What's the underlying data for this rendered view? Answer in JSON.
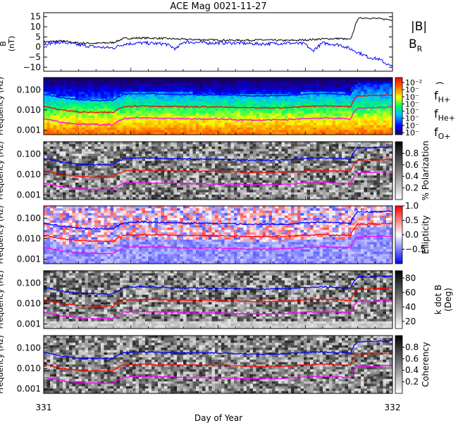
{
  "title": "ACE Mag 0021-11-27",
  "xlabel": "Day of Year",
  "x_ticks": [
    "331",
    "332"
  ],
  "x_range": [
    331,
    332
  ],
  "colors": {
    "black": "#000000",
    "blue": "#0000ff",
    "red": "#ff0000",
    "magenta": "#ff00ff"
  },
  "chart_data": [
    {
      "type": "line",
      "panel": "magnetic field",
      "ylabel": "B\n(nT)",
      "ylim": [
        -12,
        17
      ],
      "yticks": [
        "15",
        "10",
        "5",
        "0",
        "−5",
        "−10"
      ],
      "ytick_values": [
        15,
        10,
        5,
        0,
        -5,
        -10
      ],
      "legend": [
        {
          "label": "|B|",
          "color": "#000000"
        },
        {
          "label": "B",
          "sub": "R",
          "color": "#0000ff"
        }
      ],
      "series": [
        {
          "name": "|B|",
          "color": "#000000",
          "x": [
            331.0,
            331.05,
            331.1,
            331.15,
            331.2,
            331.23,
            331.28,
            331.35,
            331.4,
            331.48,
            331.55,
            331.62,
            331.7,
            331.75,
            331.8,
            331.85,
            331.88,
            331.9,
            331.92,
            331.96,
            332.0
          ],
          "y": [
            2.5,
            3.0,
            2.0,
            1.8,
            2.2,
            4.2,
            4.5,
            4.2,
            3.8,
            3.5,
            3.3,
            3.5,
            3.2,
            3.5,
            4.0,
            4.2,
            3.6,
            14.0,
            14.5,
            14.0,
            13.5
          ]
        },
        {
          "name": "B_R",
          "color": "#0000ff",
          "x": [
            331.0,
            331.05,
            331.1,
            331.15,
            331.2,
            331.23,
            331.28,
            331.35,
            331.38,
            331.4,
            331.48,
            331.55,
            331.62,
            331.7,
            331.75,
            331.77,
            331.8,
            331.85,
            331.88,
            331.9,
            331.93,
            331.96,
            332.0
          ],
          "y": [
            1.5,
            2.5,
            1.0,
            0.0,
            -0.5,
            1.5,
            2.0,
            1.5,
            -1.0,
            2.5,
            2.0,
            2.0,
            1.5,
            2.0,
            1.5,
            -2.0,
            2.0,
            1.0,
            -1.0,
            -2.5,
            -5.0,
            -6.0,
            -10.0
          ]
        }
      ]
    },
    {
      "type": "heatmap",
      "panel": "power spectral density",
      "ylabel": "Frequency (Hz)",
      "ylim": [
        0.0006,
        0.4
      ],
      "yscale": "log",
      "yticks": [
        "0.100",
        "0.010",
        "0.001"
      ],
      "ytick_values": [
        0.1,
        0.01,
        0.001
      ],
      "colorbar": {
        "scale": "log",
        "tick_labels": [
          "10⁻²",
          "10⁻",
          "10⁻",
          "10⁻",
          "10⁻",
          "10⁻",
          "10⁻",
          "10⁻"
        ],
        "label": ")"
      },
      "legend": [
        {
          "label": "f",
          "sub": "H+",
          "color": "#0000ff"
        },
        {
          "label": "f",
          "sub": "He+",
          "color": "#ff0000"
        },
        {
          "label": "f",
          "sub": "O+",
          "color": "#ff00ff"
        }
      ]
    },
    {
      "type": "heatmap",
      "panel": "polarization",
      "ylabel": "Frequency (Hz)",
      "ylim": [
        0.0006,
        0.4
      ],
      "yscale": "log",
      "yticks": [
        "0.100",
        "0.010",
        "0.001"
      ],
      "ytick_values": [
        0.1,
        0.01,
        0.001
      ],
      "colorbar": {
        "range": [
          0,
          1
        ],
        "tick_labels": [
          "0.8",
          "0.6",
          "0.4",
          "0.2"
        ],
        "tick_values": [
          0.8,
          0.6,
          0.4,
          0.2
        ],
        "label": "% Polarization"
      }
    },
    {
      "type": "heatmap",
      "panel": "ellipticity",
      "ylabel": "Frequency (Hz)",
      "ylim": [
        0.0006,
        0.4
      ],
      "yscale": "log",
      "yticks": [
        "0.100",
        "0.010",
        "0.001"
      ],
      "ytick_values": [
        0.1,
        0.01,
        0.001
      ],
      "colorbar": {
        "range": [
          -1,
          1
        ],
        "tick_labels": [
          "1.0",
          "0.5",
          "0.0",
          "−0.5"
        ],
        "tick_values": [
          1.0,
          0.5,
          0.0,
          -0.5
        ],
        "label": "Ellipticity"
      }
    },
    {
      "type": "heatmap",
      "panel": "wave normal angle",
      "ylabel": "Frequency (Hz)",
      "ylim": [
        0.0006,
        0.4
      ],
      "yscale": "log",
      "yticks": [
        "0.100",
        "0.010",
        "0.001"
      ],
      "ytick_values": [
        0.1,
        0.01,
        0.001
      ],
      "colorbar": {
        "range": [
          10,
          90
        ],
        "tick_labels": [
          "80",
          "60",
          "40",
          "20"
        ],
        "tick_values": [
          80,
          60,
          40,
          20
        ],
        "label": "k dot B\n(Deg)"
      }
    },
    {
      "type": "heatmap",
      "panel": "coherency",
      "ylabel": "Frequency (Hz)",
      "ylim": [
        0.0006,
        0.4
      ],
      "yscale": "log",
      "yticks": [
        "0.100",
        "0.010",
        "0.001"
      ],
      "ytick_values": [
        0.1,
        0.01,
        0.001
      ],
      "colorbar": {
        "range": [
          0,
          1
        ],
        "tick_labels": [
          "0.8",
          "0.6",
          "0.4",
          "0.2"
        ],
        "tick_values": [
          0.8,
          0.6,
          0.4,
          0.2
        ],
        "label": "Coherency"
      }
    }
  ],
  "gyrofrequency_overlays": [
    {
      "name": "fH+",
      "color": "#0000ff",
      "x": [
        331.0,
        331.05,
        331.1,
        331.15,
        331.2,
        331.23,
        331.28,
        331.35,
        331.4,
        331.5,
        331.6,
        331.7,
        331.75,
        331.8,
        331.85,
        331.88,
        331.9,
        331.95,
        332.0
      ],
      "y": [
        0.06,
        0.04,
        0.032,
        0.03,
        0.03,
        0.06,
        0.065,
        0.06,
        0.058,
        0.055,
        0.05,
        0.052,
        0.06,
        0.065,
        0.06,
        0.055,
        0.2,
        0.21,
        0.22
      ]
    },
    {
      "name": "fHe+",
      "color": "#ff0000",
      "x": [
        331.0,
        331.05,
        331.1,
        331.15,
        331.2,
        331.23,
        331.28,
        331.35,
        331.4,
        331.5,
        331.6,
        331.7,
        331.75,
        331.8,
        331.85,
        331.88,
        331.9,
        331.95,
        332.0
      ],
      "y": [
        0.015,
        0.01,
        0.008,
        0.0075,
        0.0075,
        0.015,
        0.016,
        0.015,
        0.0145,
        0.014,
        0.0125,
        0.013,
        0.015,
        0.016,
        0.015,
        0.014,
        0.05,
        0.052,
        0.055
      ]
    },
    {
      "name": "fO+",
      "color": "#ff00ff",
      "x": [
        331.0,
        331.05,
        331.1,
        331.15,
        331.2,
        331.23,
        331.28,
        331.35,
        331.4,
        331.5,
        331.6,
        331.7,
        331.75,
        331.8,
        331.85,
        331.88,
        331.9,
        331.95,
        332.0
      ],
      "y": [
        0.0038,
        0.0025,
        0.002,
        0.0019,
        0.0019,
        0.0038,
        0.004,
        0.0038,
        0.0036,
        0.0035,
        0.0031,
        0.0033,
        0.0038,
        0.004,
        0.0038,
        0.0035,
        0.0125,
        0.013,
        0.014
      ]
    }
  ]
}
